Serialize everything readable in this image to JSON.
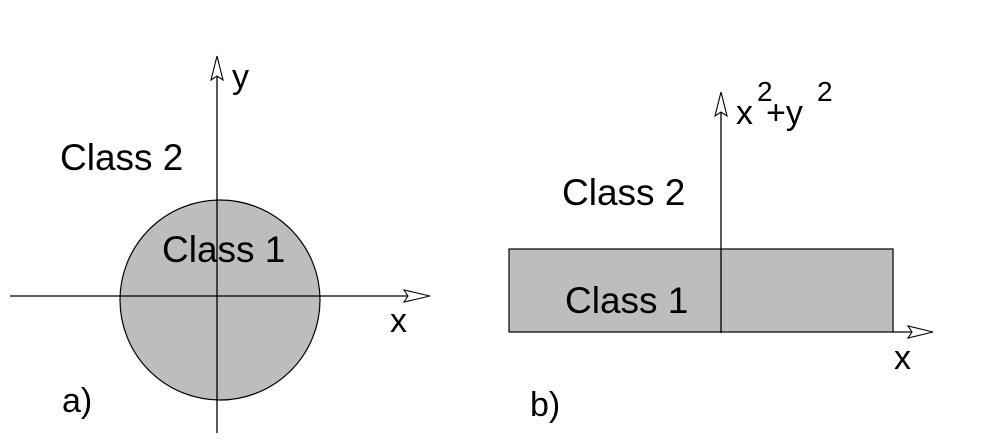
{
  "colors": {
    "region_fill": "#bdbdbd",
    "stroke": "#000000",
    "background": "#ffffff"
  },
  "panel_a": {
    "label": "a)",
    "x_axis_label": "x",
    "y_axis_label": "y",
    "outer_region_label": "Class 2",
    "inner_region_label": "Class 1",
    "region_shape": "circle"
  },
  "panel_b": {
    "label": "b)",
    "x_axis_label": "x",
    "y_axis_label_parts": {
      "x": "x",
      "x_exp": "2",
      "plus_y": "+y",
      "y_exp": "2"
    },
    "outer_region_label": "Class 2",
    "inner_region_label": "Class 1",
    "region_shape": "rectangle"
  }
}
